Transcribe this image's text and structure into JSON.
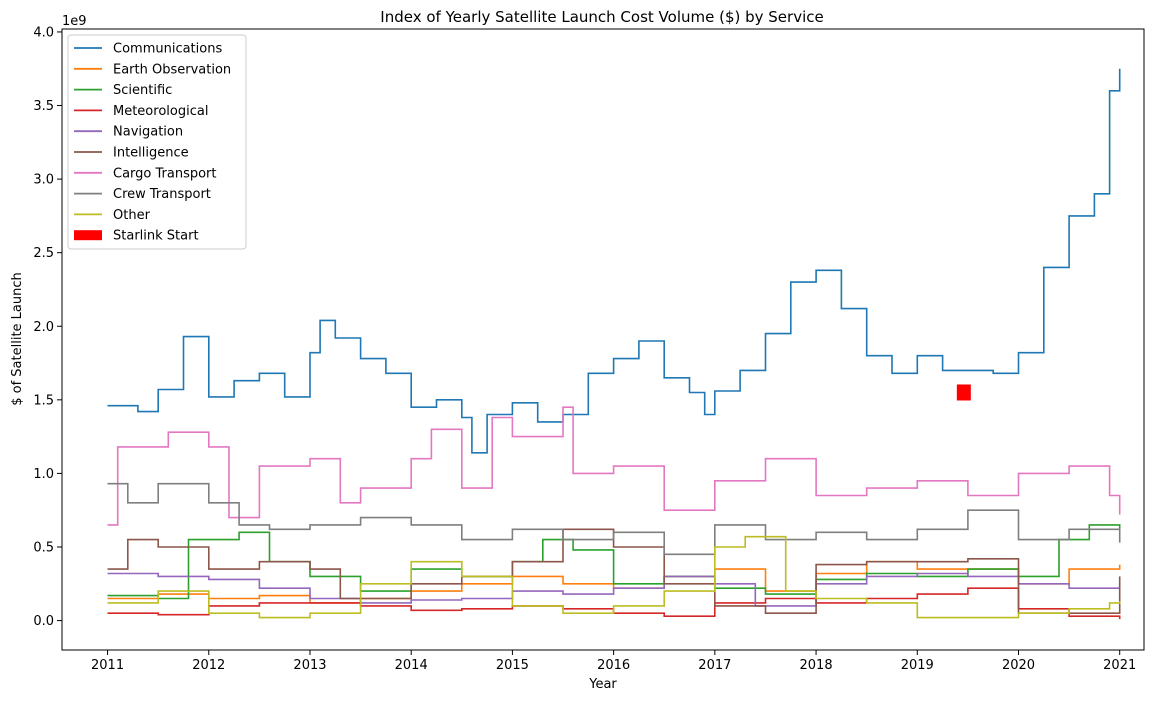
{
  "chart_data": {
    "type": "line",
    "title": "Index of Yearly Satellite Launch Cost Volume ($) by Service",
    "xlabel": "Year",
    "ylabel": "$ of Satellite Launch",
    "y_scale_label": "1e9",
    "xlim": [
      2010.55,
      2021.24
    ],
    "ylim": [
      -0.2,
      4.02
    ],
    "x_ticks": [
      2011,
      2012,
      2013,
      2014,
      2015,
      2016,
      2017,
      2018,
      2019,
      2020,
      2021
    ],
    "x_tick_labels": [
      "2011",
      "2012",
      "2013",
      "2014",
      "2015",
      "2016",
      "2017",
      "2018",
      "2019",
      "2020",
      "2021"
    ],
    "y_ticks": [
      0.0,
      0.5,
      1.0,
      1.5,
      2.0,
      2.5,
      3.0,
      3.5,
      4.0
    ],
    "y_tick_labels": [
      "0.0",
      "0.5",
      "1.0",
      "1.5",
      "2.0",
      "2.5",
      "3.0",
      "3.5",
      "4.0"
    ],
    "legend_position": "upper-left",
    "step": true,
    "series": [
      {
        "name": "Communications",
        "color": "#1f77b4",
        "x": [
          2011.0,
          2011.3,
          2011.5,
          2011.75,
          2012.0,
          2012.25,
          2012.5,
          2012.75,
          2013.0,
          2013.1,
          2013.25,
          2013.5,
          2013.75,
          2014.0,
          2014.25,
          2014.5,
          2014.6,
          2014.75,
          2015.0,
          2015.25,
          2015.5,
          2015.75,
          2016.0,
          2016.25,
          2016.5,
          2016.75,
          2016.9,
          2017.0,
          2017.25,
          2017.5,
          2017.75,
          2018.0,
          2018.25,
          2018.5,
          2018.75,
          2019.0,
          2019.25,
          2019.5,
          2019.75,
          2020.0,
          2020.25,
          2020.5,
          2020.75,
          2020.9,
          2021.0
        ],
        "y": [
          1.46,
          1.42,
          1.57,
          1.93,
          1.52,
          1.63,
          1.68,
          1.52,
          1.82,
          2.04,
          1.92,
          1.78,
          1.68,
          1.45,
          1.5,
          1.38,
          1.14,
          1.4,
          1.48,
          1.35,
          1.4,
          1.68,
          1.78,
          1.9,
          1.65,
          1.55,
          1.4,
          1.56,
          1.7,
          1.95,
          2.3,
          2.38,
          2.12,
          1.8,
          1.68,
          1.8,
          1.7,
          1.7,
          1.68,
          1.82,
          2.4,
          2.75,
          2.9,
          3.6,
          3.75
        ]
      },
      {
        "name": "Earth Observation",
        "color": "#ff7f0e",
        "x": [
          2011.0,
          2011.5,
          2012.0,
          2012.5,
          2013.0,
          2013.5,
          2014.0,
          2014.5,
          2015.0,
          2015.5,
          2016.0,
          2016.5,
          2017.0,
          2017.5,
          2018.0,
          2018.5,
          2019.0,
          2019.5,
          2020.0,
          2020.5,
          2021.0
        ],
        "y": [
          0.15,
          0.18,
          0.15,
          0.17,
          0.12,
          0.15,
          0.2,
          0.25,
          0.3,
          0.25,
          0.22,
          0.3,
          0.35,
          0.2,
          0.32,
          0.4,
          0.35,
          0.35,
          0.25,
          0.35,
          0.38
        ]
      },
      {
        "name": "Scientific",
        "color": "#2ca02c",
        "x": [
          2011.0,
          2011.5,
          2011.8,
          2012.3,
          2012.6,
          2013.0,
          2013.5,
          2014.0,
          2014.5,
          2015.0,
          2015.3,
          2015.6,
          2016.0,
          2016.5,
          2017.0,
          2017.5,
          2018.0,
          2018.5,
          2019.0,
          2019.5,
          2020.0,
          2020.4,
          2020.7,
          2021.0
        ],
        "y": [
          0.17,
          0.15,
          0.55,
          0.6,
          0.4,
          0.3,
          0.2,
          0.35,
          0.3,
          0.4,
          0.55,
          0.48,
          0.25,
          0.3,
          0.22,
          0.18,
          0.28,
          0.32,
          0.3,
          0.35,
          0.3,
          0.55,
          0.65,
          0.62
        ]
      },
      {
        "name": "Meteorological",
        "color": "#d62728",
        "x": [
          2011.0,
          2011.5,
          2012.0,
          2012.5,
          2013.0,
          2013.5,
          2014.0,
          2014.5,
          2015.0,
          2015.5,
          2016.0,
          2016.5,
          2017.0,
          2017.5,
          2018.0,
          2018.5,
          2019.0,
          2019.5,
          2020.0,
          2020.5,
          2021.0
        ],
        "y": [
          0.05,
          0.04,
          0.1,
          0.12,
          0.12,
          0.1,
          0.07,
          0.08,
          0.1,
          0.08,
          0.05,
          0.03,
          0.12,
          0.15,
          0.12,
          0.15,
          0.18,
          0.22,
          0.08,
          0.03,
          0.01
        ]
      },
      {
        "name": "Navigation",
        "color": "#9467bd",
        "x": [
          2011.0,
          2011.5,
          2012.0,
          2012.5,
          2013.0,
          2013.5,
          2014.0,
          2014.5,
          2015.0,
          2015.5,
          2016.0,
          2016.5,
          2017.0,
          2017.4,
          2018.0,
          2018.5,
          2019.0,
          2019.5,
          2020.0,
          2020.5,
          2021.0
        ],
        "y": [
          0.32,
          0.3,
          0.28,
          0.22,
          0.15,
          0.12,
          0.14,
          0.15,
          0.2,
          0.18,
          0.22,
          0.3,
          0.25,
          0.1,
          0.25,
          0.3,
          0.32,
          0.3,
          0.25,
          0.22,
          0.25
        ]
      },
      {
        "name": "Intelligence",
        "color": "#8c564b",
        "x": [
          2011.0,
          2011.2,
          2011.5,
          2012.0,
          2012.5,
          2013.0,
          2013.3,
          2014.0,
          2014.5,
          2015.0,
          2015.5,
          2016.0,
          2016.5,
          2017.0,
          2017.5,
          2018.0,
          2018.5,
          2019.0,
          2019.5,
          2020.0,
          2020.5,
          2021.0
        ],
        "y": [
          0.35,
          0.55,
          0.5,
          0.35,
          0.4,
          0.35,
          0.15,
          0.25,
          0.3,
          0.4,
          0.62,
          0.5,
          0.25,
          0.1,
          0.05,
          0.38,
          0.4,
          0.4,
          0.42,
          0.05,
          0.05,
          0.3
        ]
      },
      {
        "name": "Cargo Transport",
        "color": "#e377c2",
        "x": [
          2011.0,
          2011.1,
          2011.4,
          2011.6,
          2012.0,
          2012.2,
          2012.5,
          2013.0,
          2013.3,
          2013.5,
          2014.0,
          2014.2,
          2014.5,
          2014.8,
          2015.0,
          2015.5,
          2015.6,
          2016.0,
          2016.5,
          2017.0,
          2017.5,
          2018.0,
          2018.5,
          2019.0,
          2019.5,
          2020.0,
          2020.5,
          2020.9,
          2021.0
        ],
        "y": [
          0.65,
          1.18,
          1.18,
          1.28,
          1.18,
          0.7,
          1.05,
          1.1,
          0.8,
          0.9,
          1.1,
          1.3,
          0.9,
          1.38,
          1.25,
          1.45,
          1.0,
          1.05,
          0.75,
          0.95,
          1.1,
          0.85,
          0.9,
          0.95,
          0.85,
          1.0,
          1.05,
          0.85,
          0.72
        ]
      },
      {
        "name": "Crew Transport",
        "color": "#7f7f7f",
        "x": [
          2011.0,
          2011.2,
          2011.5,
          2012.0,
          2012.3,
          2012.6,
          2013.0,
          2013.5,
          2014.0,
          2014.5,
          2015.0,
          2015.5,
          2016.0,
          2016.5,
          2017.0,
          2017.5,
          2018.0,
          2018.5,
          2019.0,
          2019.5,
          2020.0,
          2020.5,
          2021.0
        ],
        "y": [
          0.93,
          0.8,
          0.93,
          0.8,
          0.65,
          0.62,
          0.65,
          0.7,
          0.65,
          0.55,
          0.62,
          0.55,
          0.6,
          0.45,
          0.65,
          0.55,
          0.6,
          0.55,
          0.62,
          0.75,
          0.55,
          0.62,
          0.53
        ]
      },
      {
        "name": "Other",
        "color": "#bcbd22",
        "x": [
          2011.0,
          2011.5,
          2012.0,
          2012.5,
          2013.0,
          2013.5,
          2014.0,
          2014.5,
          2015.0,
          2015.5,
          2016.0,
          2016.5,
          2017.0,
          2017.3,
          2017.7,
          2018.0,
          2018.5,
          2019.0,
          2019.5,
          2020.0,
          2020.5,
          2020.9,
          2021.0
        ],
        "y": [
          0.12,
          0.2,
          0.05,
          0.02,
          0.05,
          0.25,
          0.4,
          0.3,
          0.1,
          0.05,
          0.1,
          0.2,
          0.5,
          0.57,
          0.2,
          0.15,
          0.12,
          0.02,
          0.02,
          0.05,
          0.08,
          0.12,
          0.13
        ]
      }
    ],
    "marker": {
      "name": "Starlink Start",
      "x": 2019.46,
      "y": 1.55,
      "color": "#ff0000"
    }
  }
}
